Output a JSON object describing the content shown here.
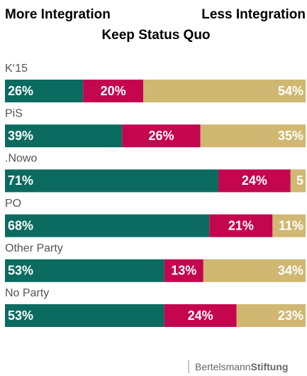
{
  "chart_data": {
    "type": "stacked-bar",
    "categories": [
      "K‘15",
      "PiS",
      ".Nowo",
      "PO",
      "Other Party",
      "No Party"
    ],
    "series": [
      {
        "name": "More Integration",
        "color": "#0b6b60",
        "values": [
          26,
          39,
          71,
          68,
          53,
          53
        ],
        "value_labels": [
          "26%",
          "39%",
          "71%",
          "68%",
          "53%",
          "53%"
        ]
      },
      {
        "name": "Keep Status Quo",
        "color": "#c4064f",
        "values": [
          20,
          26,
          24,
          21,
          13,
          24
        ],
        "value_labels": [
          "20%",
          "26%",
          "24%",
          "21%",
          "13%",
          "24%"
        ]
      },
      {
        "name": "Less Integration",
        "color": "#d0b772",
        "values": [
          54,
          35,
          5,
          11,
          34,
          23
        ],
        "value_labels": [
          "54%",
          "35%",
          "5",
          "11%",
          "34%",
          "23%"
        ]
      }
    ],
    "xlim": [
      0,
      100
    ]
  },
  "footer": {
    "brand_light": "Bertelsmann",
    "brand_bold": "Stiftung"
  }
}
